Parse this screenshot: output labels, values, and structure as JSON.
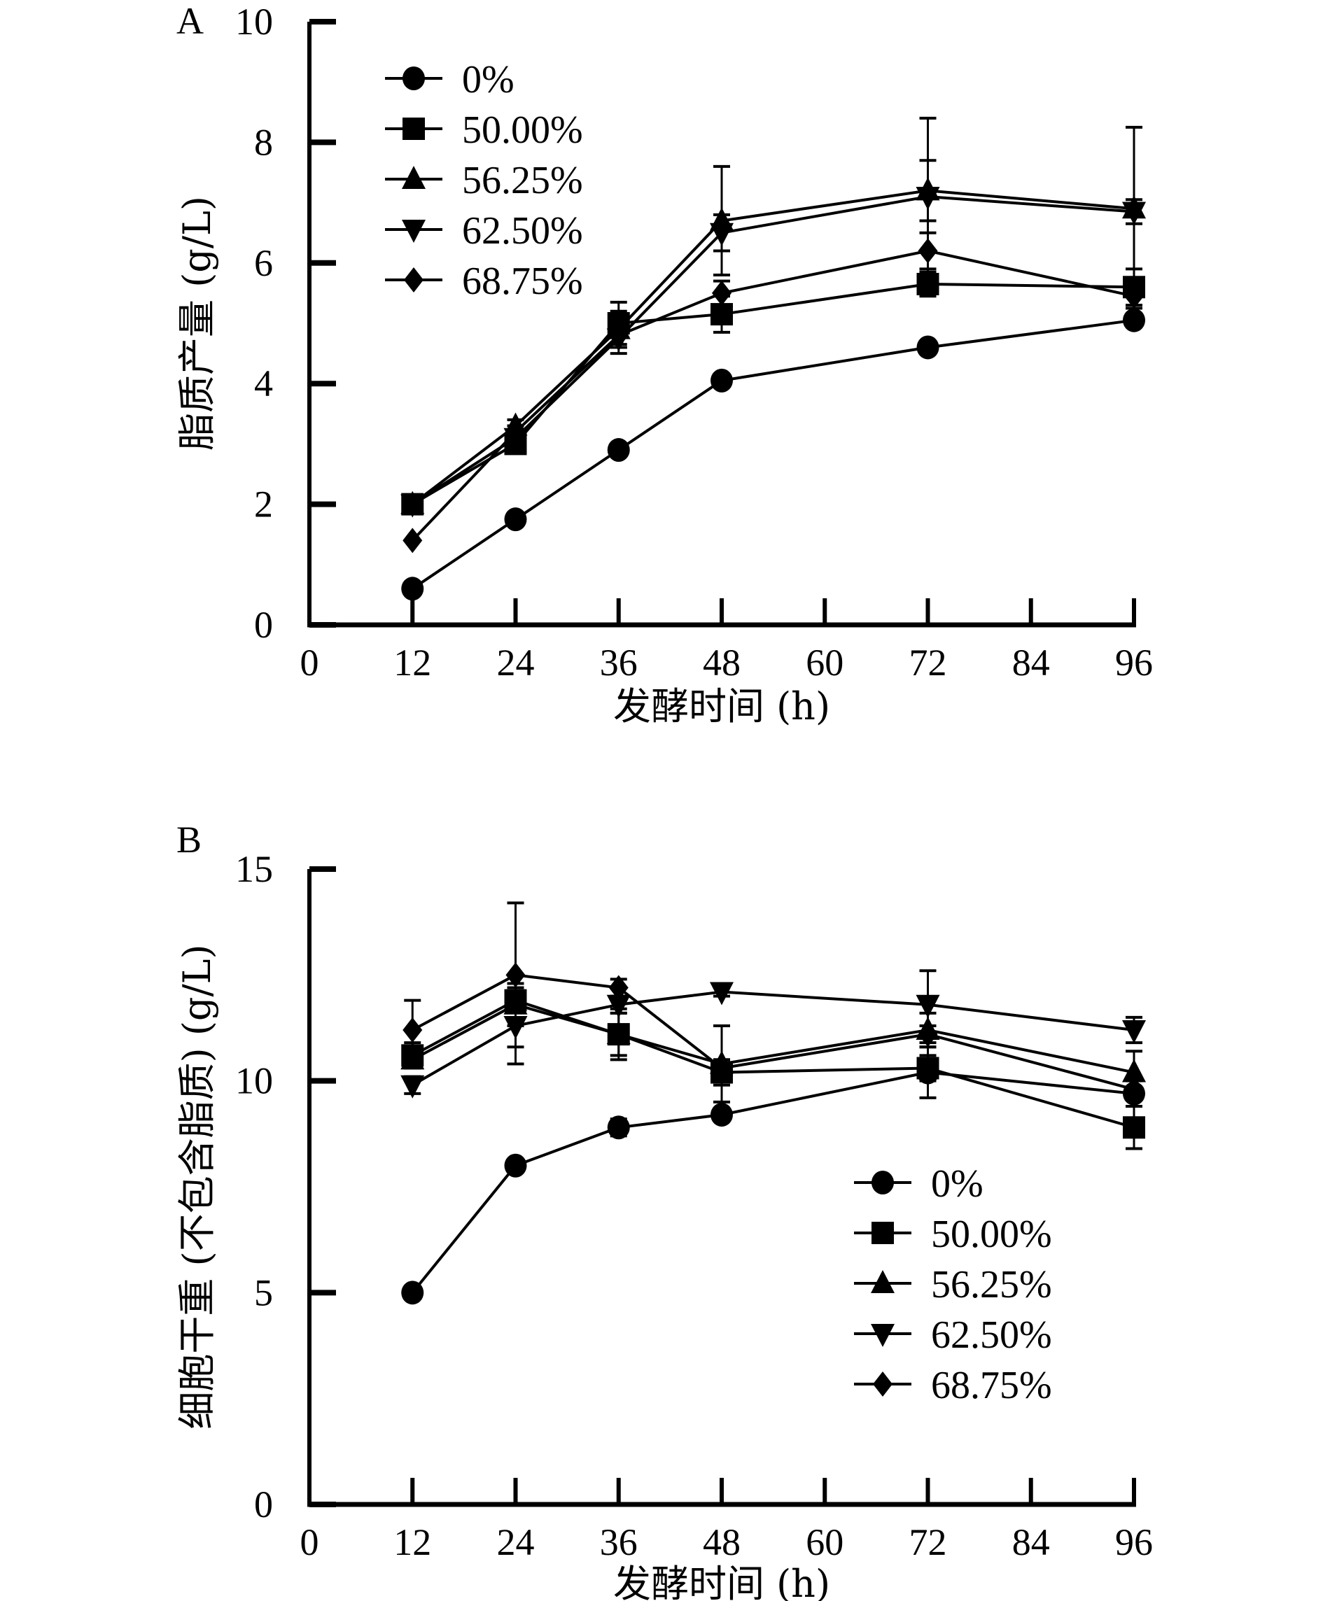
{
  "chart_data": [
    {
      "panel": "A",
      "type": "line",
      "title": "",
      "xlabel": "发酵时间 (h)",
      "ylabel": "脂质产量 (g/L)",
      "xlim": [
        0,
        96
      ],
      "ylim": [
        0,
        10
      ],
      "xticks": [
        0,
        12,
        24,
        36,
        48,
        60,
        72,
        84,
        96
      ],
      "yticks": [
        0,
        2,
        4,
        6,
        8,
        10
      ],
      "grid": false,
      "legend_position": "top-left",
      "x": [
        12,
        24,
        36,
        48,
        72,
        96
      ],
      "series": [
        {
          "name": "0%",
          "marker": "circle",
          "values": [
            0.6,
            1.75,
            2.9,
            4.05,
            4.6,
            5.05
          ],
          "errors": [
            0.05,
            0.05,
            0.05,
            0.05,
            0.05,
            0.05
          ]
        },
        {
          "name": "50.00%",
          "marker": "square",
          "values": [
            2.0,
            3.0,
            5.0,
            5.15,
            5.65,
            5.6
          ],
          "errors": [
            0.05,
            0.1,
            0.35,
            0.3,
            0.2,
            0.3
          ]
        },
        {
          "name": "56.25%",
          "marker": "triangle-up",
          "values": [
            2.0,
            3.3,
            4.9,
            6.7,
            7.2,
            6.9
          ],
          "errors": [
            0.05,
            0.1,
            0.3,
            0.9,
            0.5,
            1.35
          ]
        },
        {
          "name": "62.50%",
          "marker": "triangle-down",
          "values": [
            2.0,
            3.1,
            4.75,
            6.5,
            7.1,
            6.85
          ],
          "errors": [
            0.05,
            0.1,
            0.25,
            0.3,
            1.3,
            0.2
          ]
        },
        {
          "name": "68.75%",
          "marker": "diamond",
          "values": [
            1.4,
            3.2,
            4.8,
            5.5,
            6.2,
            5.45
          ],
          "errors": [
            0.05,
            0.1,
            0.2,
            0.2,
            0.3,
            0.2
          ]
        }
      ]
    },
    {
      "panel": "B",
      "type": "line",
      "title": "",
      "xlabel": "发酵时间 (h)",
      "ylabel": "细胞干重 (不包含脂质) (g/L)",
      "xlim": [
        0,
        96
      ],
      "ylim": [
        0,
        15
      ],
      "xticks": [
        0,
        12,
        24,
        36,
        48,
        60,
        72,
        84,
        96
      ],
      "yticks": [
        0,
        5,
        10,
        15
      ],
      "grid": false,
      "legend_position": "bottom-right",
      "x": [
        12,
        24,
        36,
        48,
        72,
        96
      ],
      "series": [
        {
          "name": "0%",
          "marker": "circle",
          "values": [
            5.0,
            8.0,
            8.9,
            9.2,
            10.2,
            9.7
          ],
          "errors": [
            0.05,
            0.05,
            0.2,
            0.1,
            0.6,
            0.1
          ]
        },
        {
          "name": "50.00%",
          "marker": "square",
          "values": [
            10.6,
            11.9,
            11.1,
            10.2,
            10.3,
            8.9
          ],
          "errors": [
            0.3,
            0.6,
            0.5,
            0.3,
            0.3,
            0.5
          ]
        },
        {
          "name": "56.25%",
          "marker": "triangle-up",
          "values": [
            10.5,
            11.8,
            11.1,
            10.4,
            11.2,
            10.2
          ],
          "errors": [
            0.2,
            0.5,
            0.6,
            0.9,
            0.4,
            0.5
          ]
        },
        {
          "name": "62.50%",
          "marker": "triangle-down",
          "values": [
            9.9,
            11.3,
            11.8,
            12.1,
            11.8,
            11.2
          ],
          "errors": [
            0.2,
            0.9,
            0.2,
            0.1,
            0.8,
            0.3
          ]
        },
        {
          "name": "68.75%",
          "marker": "diamond",
          "values": [
            11.2,
            12.5,
            12.2,
            10.3,
            11.1,
            9.8
          ],
          "errors": [
            0.7,
            1.7,
            0.2,
            0.2,
            0.2,
            0.2
          ]
        }
      ]
    }
  ]
}
